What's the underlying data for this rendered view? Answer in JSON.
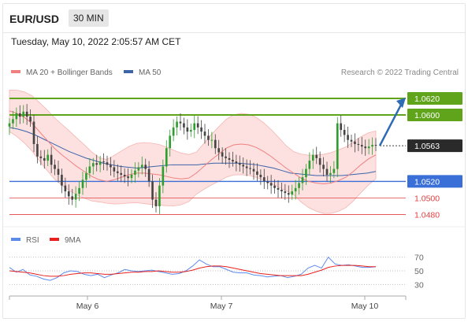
{
  "header": {
    "symbol": "EUR/USD",
    "timeframe": "30 MIN"
  },
  "datetime": "Tuesday, May 10, 2022 2:05:57 AM CET",
  "legend": {
    "bb_label": "MA 20 + Bollinger Bands",
    "ma50_label": "MA 50",
    "credit": "Research © 2022 Trading Central"
  },
  "rsi_legend": {
    "rsi_label": "RSI",
    "ma9_label": "9MA"
  },
  "colors": {
    "bb_band": "#fbd7d5",
    "ma20": "#f08080",
    "ma50": "#3d63a8",
    "resistance": "#5fa41a",
    "support": "#3a6fd8",
    "support2": "#e34040",
    "rsi": "#5b8cec",
    "rsi_ma": "#e8211f",
    "candle_up": "#2e9e2e",
    "candle_down": "#444444",
    "arrow": "#2e6bb5"
  },
  "chart_data": [
    {
      "type": "candlestick",
      "pair": "EUR/USD",
      "ylim": [
        1.0472,
        1.0638
      ],
      "x_labels": [
        "May 6",
        "May 7",
        "May 10"
      ],
      "levels": [
        {
          "value": 1.062,
          "label": "1.0620",
          "kind": "resistance"
        },
        {
          "value": 1.06,
          "label": "1.0600",
          "kind": "resistance"
        },
        {
          "value": 1.0563,
          "label": "1.0563",
          "kind": "current"
        },
        {
          "value": 1.052,
          "label": "1.0520",
          "kind": "pivot"
        },
        {
          "value": 1.05,
          "label": "1.0500",
          "kind": "support"
        },
        {
          "value": 1.048,
          "label": "1.0480",
          "kind": "support"
        }
      ],
      "close": [
        1.059,
        1.0595,
        1.0602,
        1.0598,
        1.0604,
        1.0598,
        1.0592,
        1.0565,
        1.055,
        1.0548,
        1.0545,
        1.0552,
        1.054,
        1.0535,
        1.0528,
        1.0515,
        1.0508,
        1.0502,
        1.0498,
        1.0505,
        1.0512,
        1.0522,
        1.053,
        1.0538,
        1.0542,
        1.054,
        1.0544,
        1.0543,
        1.054,
        1.0537,
        1.0532,
        1.053,
        1.0528,
        1.0526,
        1.0524,
        1.0528,
        1.0533,
        1.0537,
        1.054,
        1.0535,
        1.052,
        1.0498,
        1.049,
        1.0515,
        1.0538,
        1.056,
        1.0575,
        1.0585,
        1.0592,
        1.059,
        1.0585,
        1.058,
        1.0582,
        1.059,
        1.0585,
        1.058,
        1.0575,
        1.057,
        1.057,
        1.056,
        1.0555,
        1.055,
        1.0548,
        1.0546,
        1.0544,
        1.0542,
        1.054,
        1.0538,
        1.0536,
        1.0535,
        1.0532,
        1.0528,
        1.0525,
        1.052,
        1.0518,
        1.0515,
        1.0512,
        1.051,
        1.0508,
        1.0506,
        1.0504,
        1.0508,
        1.0512,
        1.0518,
        1.0525,
        1.0535,
        1.0545,
        1.0552,
        1.0548,
        1.054,
        1.0535,
        1.0528,
        1.053,
        1.0535,
        1.059,
        1.0582,
        1.0576,
        1.057,
        1.0568,
        1.0565,
        1.0564,
        1.0562,
        1.056,
        1.0562,
        1.0564,
        1.0563
      ],
      "ma20": [
        1.0605,
        1.0602,
        1.0597,
        1.059,
        1.058,
        1.057,
        1.056,
        1.0552,
        1.0545,
        1.0538,
        1.0532,
        1.0526,
        1.0522,
        1.052,
        1.0522,
        1.0525,
        1.0528,
        1.053,
        1.053,
        1.0529,
        1.0528,
        1.0526,
        1.0524,
        1.0523,
        1.0524,
        1.053,
        1.0538,
        1.0546,
        1.0553,
        1.056,
        1.0564,
        1.0565,
        1.0564,
        1.0561,
        1.0556,
        1.055,
        1.0543,
        1.0536,
        1.053,
        1.0524,
        1.052,
        1.0518,
        1.0517,
        1.0518,
        1.0521,
        1.0525,
        1.0532,
        1.054,
        1.0547,
        1.0552
      ],
      "ma50": [
        1.0585,
        1.0583,
        1.058,
        1.0576,
        1.0571,
        1.0566,
        1.0561,
        1.0556,
        1.0552,
        1.0548,
        1.0545,
        1.0542,
        1.054,
        1.0538,
        1.0537,
        1.0536,
        1.0537,
        1.0538,
        1.0539,
        1.054,
        1.054,
        1.054,
        1.054,
        1.0541,
        1.0542,
        1.0542,
        1.0542,
        1.0542,
        1.0541,
        1.054,
        1.0538,
        1.0536,
        1.0533,
        1.053,
        1.0529,
        1.0528,
        1.0527,
        1.0527,
        1.0527,
        1.0527,
        1.0528,
        1.0529,
        1.053,
        1.0532
      ]
    },
    {
      "type": "line",
      "title": "RSI",
      "ylim": [
        20,
        80
      ],
      "y_ticks": [
        "70",
        "50",
        "30"
      ],
      "series": [
        {
          "name": "RSI",
          "values": [
            55,
            48,
            52,
            44,
            42,
            38,
            36,
            40,
            47,
            50,
            49,
            45,
            43,
            45,
            40,
            44,
            47,
            52,
            50,
            49,
            50,
            51,
            49,
            47,
            45,
            46,
            50,
            57,
            66,
            60,
            56,
            56,
            52,
            48,
            47,
            47,
            44,
            43,
            41,
            42,
            43,
            40,
            42,
            45,
            54,
            58,
            54,
            70,
            60,
            58,
            59,
            57,
            55,
            55,
            56
          ]
        },
        {
          "name": "9MA",
          "values": [
            50,
            49,
            48,
            47,
            45,
            43,
            42,
            42,
            43,
            45,
            46,
            47,
            47,
            46,
            45,
            45,
            46,
            47,
            48,
            48,
            49,
            49,
            50,
            49,
            48,
            48,
            49,
            51,
            54,
            56,
            57,
            57,
            56,
            54,
            52,
            50,
            48,
            46,
            45,
            44,
            43,
            43,
            43,
            43,
            45,
            48,
            51,
            55,
            57,
            58,
            58,
            58,
            57,
            56,
            56
          ]
        }
      ]
    }
  ]
}
